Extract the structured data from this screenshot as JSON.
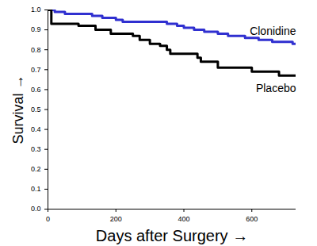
{
  "chart_data": {
    "type": "line",
    "x_label": "Days after Surgery",
    "y_label": "Survival",
    "xlim": [
      0,
      730
    ],
    "xticks": [
      0,
      200,
      400,
      600
    ],
    "ylim": [
      0,
      1
    ],
    "yticks": [
      {
        "value": 0,
        "label": "0.0"
      },
      0.1,
      0.2,
      0.3,
      0.4,
      0.5,
      0.6,
      0.7,
      0.8,
      0.9,
      {
        "value": 1,
        "label": "1.0"
      }
    ],
    "line_style": "step",
    "series": [
      {
        "name": "Clonidine",
        "color": "#3030d0",
        "x": [
          0,
          20,
          50,
          130,
          160,
          200,
          220,
          350,
          380,
          400,
          430,
          460,
          500,
          530,
          580,
          620,
          660,
          720,
          730
        ],
        "values": [
          1.0,
          0.99,
          0.98,
          0.97,
          0.96,
          0.95,
          0.94,
          0.93,
          0.92,
          0.91,
          0.9,
          0.89,
          0.88,
          0.87,
          0.86,
          0.85,
          0.84,
          0.83,
          0.83
        ]
      },
      {
        "name": "Placebo",
        "color": "#000000",
        "x": [
          0,
          10,
          90,
          140,
          185,
          250,
          270,
          300,
          330,
          350,
          360,
          440,
          450,
          500,
          600,
          680,
          730
        ],
        "values": [
          1.0,
          0.93,
          0.92,
          0.9,
          0.88,
          0.87,
          0.85,
          0.83,
          0.82,
          0.8,
          0.78,
          0.76,
          0.74,
          0.71,
          0.69,
          0.67,
          0.67
        ]
      }
    ]
  }
}
